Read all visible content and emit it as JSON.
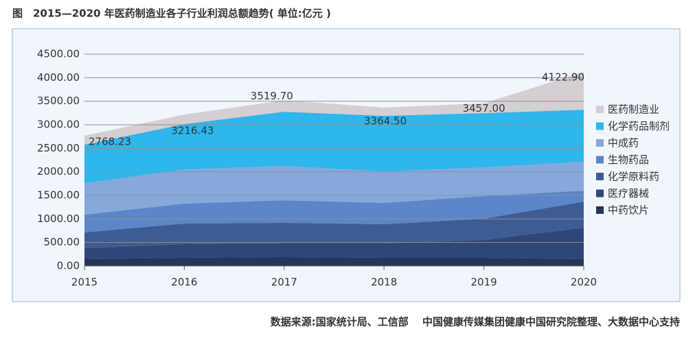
{
  "chart_data": {
    "type": "area",
    "title": "图　2015—2020 年医药制造业各子行业利润总额趋势( 单位:亿元 )",
    "source": "数据来源:国家统计局、工信部　 中国健康传媒集团健康中国研究院整理、大数据中心支持",
    "categories": [
      "2015",
      "2016",
      "2017",
      "2018",
      "2019",
      "2020"
    ],
    "ylim": [
      0,
      4500
    ],
    "yticks": [
      {
        "value": 0,
        "label": "0.00"
      },
      {
        "value": 500,
        "label": "500.00"
      },
      {
        "value": 1000,
        "label": "1000.00"
      },
      {
        "value": 1500,
        "label": "1500.00"
      },
      {
        "value": 2000,
        "label": "2000.00"
      },
      {
        "value": 2500,
        "label": "2500.00"
      },
      {
        "value": 3000,
        "label": "3000.00"
      },
      {
        "value": 3500,
        "label": "3500.00"
      },
      {
        "value": 4000,
        "label": "4000.00"
      },
      {
        "value": 4500,
        "label": "4500.00"
      }
    ],
    "grid": true,
    "legend": "right",
    "series": [
      {
        "name": "医药制造业",
        "color": "#d5ced3",
        "values": [
          2768.23,
          3216.43,
          3519.7,
          3364.5,
          3457.0,
          4122.9
        ],
        "value_labels": [
          "2768.23",
          "3216.43",
          "3519.70",
          "3364.50",
          "3457.00",
          "4122.90"
        ]
      },
      {
        "name": "化学药品制剂",
        "color": "#2db7ec",
        "values": [
          816,
          961,
          1150,
          1180,
          1150,
          1106
        ]
      },
      {
        "name": "中成药",
        "color": "#87a8db",
        "values": [
          669,
          727,
          728,
          668,
          611,
          612
        ]
      },
      {
        "name": "生物药品",
        "color": "#5b86c9",
        "values": [
          379,
          423,
          480,
          452,
          481,
          233
        ]
      },
      {
        "name": "化学原料药",
        "color": "#3e5c94",
        "values": [
          335,
          436,
          437,
          408,
          451,
          553
        ]
      },
      {
        "name": "医疗器械",
        "color": "#2f4678",
        "values": [
          233,
          291,
          290,
          305,
          378,
          670
        ]
      },
      {
        "name": "中药饮片",
        "color": "#263559",
        "values": [
          145,
          175,
          190,
          175,
          175,
          145
        ]
      }
    ]
  }
}
